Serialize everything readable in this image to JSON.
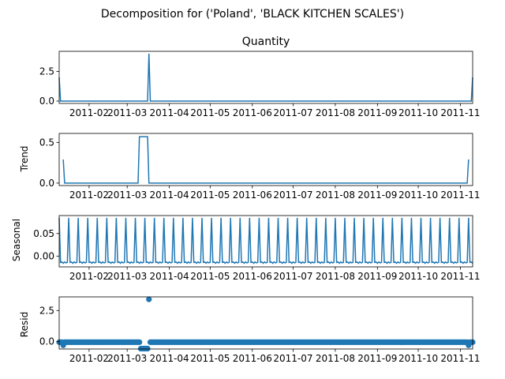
{
  "figure": {
    "suptitle": "Decomposition for ('Poland', 'BLACK KITCHEN SCALES')"
  },
  "chart_data": [
    {
      "type": "line",
      "panel": "observed",
      "title": "Quantity",
      "ylabel": "",
      "xlim": [
        "2011-01-10",
        "2011-11-10"
      ],
      "ylim": [
        -0.2,
        4.2
      ],
      "yticks": [
        0.0,
        2.5
      ],
      "ytick_labels": [
        "0.0",
        "2.5"
      ],
      "xtick_labels": [
        "2011-02",
        "2011-03",
        "2011-04",
        "2011-05",
        "2011-06",
        "2011-07",
        "2011-08",
        "2011-09",
        "2011-10",
        "2011-11"
      ],
      "series": [
        {
          "color": "#1f77b4",
          "x": [
            "2011-01-10",
            "2011-01-11",
            "2011-03-16",
            "2011-03-17",
            "2011-03-18",
            "2011-11-09",
            "2011-11-10"
          ],
          "y": [
            2,
            0,
            0,
            4,
            0,
            0,
            2
          ]
        }
      ]
    },
    {
      "type": "line",
      "panel": "trend",
      "title": "",
      "ylabel": "Trend",
      "xlim": [
        "2011-01-10",
        "2011-11-10"
      ],
      "ylim": [
        -0.03,
        0.61
      ],
      "yticks": [
        0.0,
        0.5
      ],
      "ytick_labels": [
        "0.0",
        "0.5"
      ],
      "xtick_labels": [
        "2011-02",
        "2011-03",
        "2011-04",
        "2011-05",
        "2011-06",
        "2011-07",
        "2011-08",
        "2011-09",
        "2011-10",
        "2011-11"
      ],
      "series": [
        {
          "color": "#1f77b4",
          "segments": [
            {
              "x": [
                "2011-01-13",
                "2011-01-14",
                "2011-03-09",
                "2011-03-10",
                "2011-03-16",
                "2011-03-17",
                "2011-11-06",
                "2011-11-07"
              ],
              "y": [
                0.29,
                0,
                0,
                0.57,
                0.57,
                0,
                0,
                0.29
              ]
            }
          ]
        }
      ]
    },
    {
      "type": "line",
      "panel": "seasonal",
      "title": "",
      "ylabel": "Seasonal",
      "xlim": [
        "2011-01-10",
        "2011-11-10"
      ],
      "ylim": [
        -0.024,
        0.09
      ],
      "yticks": [
        0.0,
        0.05
      ],
      "ytick_labels": [
        "0.00",
        "0.05"
      ],
      "xtick_labels": [
        "2011-02",
        "2011-03",
        "2011-04",
        "2011-05",
        "2011-06",
        "2011-07",
        "2011-08",
        "2011-09",
        "2011-10",
        "2011-11"
      ],
      "seasonal_period_days": 7,
      "pattern": [
        0.085,
        -0.014,
        -0.013,
        -0.016,
        -0.013,
        -0.015,
        -0.014
      ],
      "series": [
        {
          "color": "#1f77b4"
        }
      ]
    },
    {
      "type": "scatter",
      "panel": "resid",
      "title": "",
      "ylabel": "Resid",
      "xlim": [
        "2011-01-10",
        "2011-11-10"
      ],
      "ylim": [
        -0.6,
        3.6
      ],
      "yticks": [
        0.0,
        2.5
      ],
      "ytick_labels": [
        "0.0",
        "2.5"
      ],
      "xtick_labels": [
        "2011-02",
        "2011-03",
        "2011-04",
        "2011-05",
        "2011-06",
        "2011-07",
        "2011-08",
        "2011-09",
        "2011-10",
        "2011-11"
      ],
      "baseline": -0.05,
      "outliers": [
        {
          "x": "2011-01-13",
          "y": -0.3
        },
        {
          "x": "2011-03-11",
          "y": -0.57
        },
        {
          "x": "2011-03-12",
          "y": -0.57
        },
        {
          "x": "2011-03-13",
          "y": -0.57
        },
        {
          "x": "2011-03-14",
          "y": -0.57
        },
        {
          "x": "2011-03-15",
          "y": -0.57
        },
        {
          "x": "2011-03-16",
          "y": -0.57
        },
        {
          "x": "2011-03-17",
          "y": 3.4
        },
        {
          "x": "2011-11-07",
          "y": -0.3
        }
      ],
      "series": [
        {
          "color": "#1f77b4"
        }
      ]
    }
  ]
}
